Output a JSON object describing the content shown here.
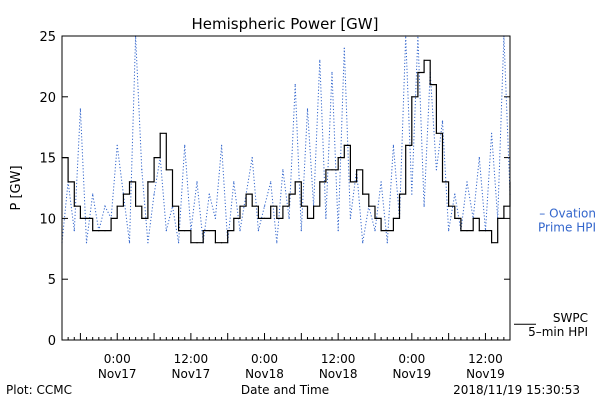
{
  "chart_data": {
    "type": "line",
    "title": "Hemispheric Power [GW]",
    "ylabel": "P [GW]",
    "xlabel": "Date and Time",
    "ylim": [
      0,
      25
    ],
    "y_ticks": [
      0,
      5,
      10,
      15,
      20,
      25
    ],
    "x_range": [
      "2018-11-16T15:00",
      "2018-11-19T16:00"
    ],
    "x_ticks": [
      {
        "time": "2018-11-17T00:00",
        "line1": "0:00",
        "line2": "Nov17"
      },
      {
        "time": "2018-11-17T12:00",
        "line1": "12:00",
        "line2": "Nov17"
      },
      {
        "time": "2018-11-18T00:00",
        "line1": "0:00",
        "line2": "Nov18"
      },
      {
        "time": "2018-11-18T12:00",
        "line1": "12:00",
        "line2": "Nov18"
      },
      {
        "time": "2018-11-19T00:00",
        "line1": "0:00",
        "line2": "Nov19"
      },
      {
        "time": "2018-11-19T12:00",
        "line1": "12:00",
        "line2": "Nov19"
      }
    ],
    "series": [
      {
        "name": "Ovation Prime HPI",
        "legend_lines": [
          "– Ovation",
          "Prime HPI"
        ],
        "color": "#3366cc",
        "style": "dotted",
        "points": [
          [
            "2018-11-16T15:00",
            8
          ],
          [
            "2018-11-16T16:00",
            13
          ],
          [
            "2018-11-16T17:00",
            9
          ],
          [
            "2018-11-16T18:00",
            19
          ],
          [
            "2018-11-16T19:00",
            8
          ],
          [
            "2018-11-16T20:00",
            12
          ],
          [
            "2018-11-16T21:00",
            9
          ],
          [
            "2018-11-16T22:00",
            11
          ],
          [
            "2018-11-16T23:00",
            10
          ],
          [
            "2018-11-17T00:00",
            16
          ],
          [
            "2018-11-17T01:00",
            12
          ],
          [
            "2018-11-17T02:00",
            8
          ],
          [
            "2018-11-17T03:00",
            25
          ],
          [
            "2018-11-17T04:00",
            14
          ],
          [
            "2018-11-17T05:00",
            8
          ],
          [
            "2018-11-17T06:00",
            12
          ],
          [
            "2018-11-17T07:00",
            15
          ],
          [
            "2018-11-17T08:00",
            9
          ],
          [
            "2018-11-17T09:00",
            11
          ],
          [
            "2018-11-17T10:00",
            8
          ],
          [
            "2018-11-17T11:00",
            16
          ],
          [
            "2018-11-17T12:00",
            9
          ],
          [
            "2018-11-17T13:00",
            13
          ],
          [
            "2018-11-17T14:00",
            8
          ],
          [
            "2018-11-17T15:00",
            12
          ],
          [
            "2018-11-17T16:00",
            10
          ],
          [
            "2018-11-17T17:00",
            16
          ],
          [
            "2018-11-17T18:00",
            8
          ],
          [
            "2018-11-17T19:00",
            13
          ],
          [
            "2018-11-17T20:00",
            9
          ],
          [
            "2018-11-17T21:00",
            12
          ],
          [
            "2018-11-17T22:00",
            15
          ],
          [
            "2018-11-17T23:00",
            9
          ],
          [
            "2018-11-18T00:00",
            11
          ],
          [
            "2018-11-18T01:00",
            13
          ],
          [
            "2018-11-18T02:00",
            8
          ],
          [
            "2018-11-18T03:00",
            14
          ],
          [
            "2018-11-18T04:00",
            10
          ],
          [
            "2018-11-18T05:00",
            21
          ],
          [
            "2018-11-18T06:00",
            9
          ],
          [
            "2018-11-18T07:00",
            19
          ],
          [
            "2018-11-18T08:00",
            11
          ],
          [
            "2018-11-18T09:00",
            23
          ],
          [
            "2018-11-18T10:00",
            10
          ],
          [
            "2018-11-18T11:00",
            22
          ],
          [
            "2018-11-18T12:00",
            9
          ],
          [
            "2018-11-18T13:00",
            24
          ],
          [
            "2018-11-18T14:00",
            10
          ],
          [
            "2018-11-18T15:00",
            14
          ],
          [
            "2018-11-18T16:00",
            8
          ],
          [
            "2018-11-18T17:00",
            11
          ],
          [
            "2018-11-18T18:00",
            9
          ],
          [
            "2018-11-18T19:00",
            13
          ],
          [
            "2018-11-18T20:00",
            8
          ],
          [
            "2018-11-18T21:00",
            16
          ],
          [
            "2018-11-18T22:00",
            10
          ],
          [
            "2018-11-18T23:00",
            25
          ],
          [
            "2018-11-19T00:00",
            12
          ],
          [
            "2018-11-19T01:00",
            25
          ],
          [
            "2018-11-19T02:00",
            11
          ],
          [
            "2018-11-19T03:00",
            22
          ],
          [
            "2018-11-19T04:00",
            14
          ],
          [
            "2018-11-19T05:00",
            18
          ],
          [
            "2018-11-19T06:00",
            9
          ],
          [
            "2018-11-19T07:00",
            12
          ],
          [
            "2018-11-19T08:00",
            9
          ],
          [
            "2018-11-19T09:00",
            13
          ],
          [
            "2018-11-19T10:00",
            10
          ],
          [
            "2018-11-19T11:00",
            15
          ],
          [
            "2018-11-19T12:00",
            9
          ],
          [
            "2018-11-19T13:00",
            17
          ],
          [
            "2018-11-19T14:00",
            10
          ],
          [
            "2018-11-19T15:00",
            25
          ],
          [
            "2018-11-19T16:00",
            12
          ]
        ]
      },
      {
        "name": "SWPC 5-min HPI",
        "legend_lines": [
          "SWPC",
          "5–min HPI"
        ],
        "color": "#000000",
        "style": "solid",
        "points": [
          [
            "2018-11-16T15:00",
            15
          ],
          [
            "2018-11-16T16:00",
            13
          ],
          [
            "2018-11-16T17:00",
            11
          ],
          [
            "2018-11-16T18:00",
            10
          ],
          [
            "2018-11-16T19:00",
            10
          ],
          [
            "2018-11-16T20:00",
            9
          ],
          [
            "2018-11-16T21:00",
            9
          ],
          [
            "2018-11-16T22:00",
            9
          ],
          [
            "2018-11-16T23:00",
            10
          ],
          [
            "2018-11-17T00:00",
            11
          ],
          [
            "2018-11-17T01:00",
            12
          ],
          [
            "2018-11-17T02:00",
            13
          ],
          [
            "2018-11-17T03:00",
            11
          ],
          [
            "2018-11-17T04:00",
            10
          ],
          [
            "2018-11-17T05:00",
            13
          ],
          [
            "2018-11-17T06:00",
            15
          ],
          [
            "2018-11-17T07:00",
            17
          ],
          [
            "2018-11-17T08:00",
            14
          ],
          [
            "2018-11-17T09:00",
            11
          ],
          [
            "2018-11-17T10:00",
            9
          ],
          [
            "2018-11-17T11:00",
            9
          ],
          [
            "2018-11-17T12:00",
            8
          ],
          [
            "2018-11-17T13:00",
            8
          ],
          [
            "2018-11-17T14:00",
            9
          ],
          [
            "2018-11-17T15:00",
            9
          ],
          [
            "2018-11-17T16:00",
            8
          ],
          [
            "2018-11-17T17:00",
            8
          ],
          [
            "2018-11-17T18:00",
            9
          ],
          [
            "2018-11-17T19:00",
            10
          ],
          [
            "2018-11-17T20:00",
            11
          ],
          [
            "2018-11-17T21:00",
            12
          ],
          [
            "2018-11-17T22:00",
            11
          ],
          [
            "2018-11-17T23:00",
            10
          ],
          [
            "2018-11-18T00:00",
            10
          ],
          [
            "2018-11-18T01:00",
            11
          ],
          [
            "2018-11-18T02:00",
            10
          ],
          [
            "2018-11-18T03:00",
            11
          ],
          [
            "2018-11-18T04:00",
            12
          ],
          [
            "2018-11-18T05:00",
            13
          ],
          [
            "2018-11-18T06:00",
            11
          ],
          [
            "2018-11-18T07:00",
            10
          ],
          [
            "2018-11-18T08:00",
            11
          ],
          [
            "2018-11-18T09:00",
            13
          ],
          [
            "2018-11-18T10:00",
            14
          ],
          [
            "2018-11-18T11:00",
            14
          ],
          [
            "2018-11-18T12:00",
            15
          ],
          [
            "2018-11-18T13:00",
            16
          ],
          [
            "2018-11-18T14:00",
            13
          ],
          [
            "2018-11-18T15:00",
            14
          ],
          [
            "2018-11-18T16:00",
            12
          ],
          [
            "2018-11-18T17:00",
            11
          ],
          [
            "2018-11-18T18:00",
            10
          ],
          [
            "2018-11-18T19:00",
            9
          ],
          [
            "2018-11-18T20:00",
            9
          ],
          [
            "2018-11-18T21:00",
            10
          ],
          [
            "2018-11-18T22:00",
            12
          ],
          [
            "2018-11-18T23:00",
            16
          ],
          [
            "2018-11-19T00:00",
            20
          ],
          [
            "2018-11-19T01:00",
            22
          ],
          [
            "2018-11-19T02:00",
            23
          ],
          [
            "2018-11-19T03:00",
            21
          ],
          [
            "2018-11-19T04:00",
            17
          ],
          [
            "2018-11-19T05:00",
            13
          ],
          [
            "2018-11-19T06:00",
            11
          ],
          [
            "2018-11-19T07:00",
            10
          ],
          [
            "2018-11-19T08:00",
            9
          ],
          [
            "2018-11-19T09:00",
            9
          ],
          [
            "2018-11-19T10:00",
            10
          ],
          [
            "2018-11-19T11:00",
            9
          ],
          [
            "2018-11-19T12:00",
            9
          ],
          [
            "2018-11-19T13:00",
            8
          ],
          [
            "2018-11-19T14:00",
            10
          ],
          [
            "2018-11-19T15:00",
            11
          ],
          [
            "2018-11-19T16:00",
            13
          ]
        ]
      }
    ]
  },
  "footer": {
    "plot_credit": "Plot: CCMC",
    "timestamp": "2018/11/19 15:30:53"
  }
}
